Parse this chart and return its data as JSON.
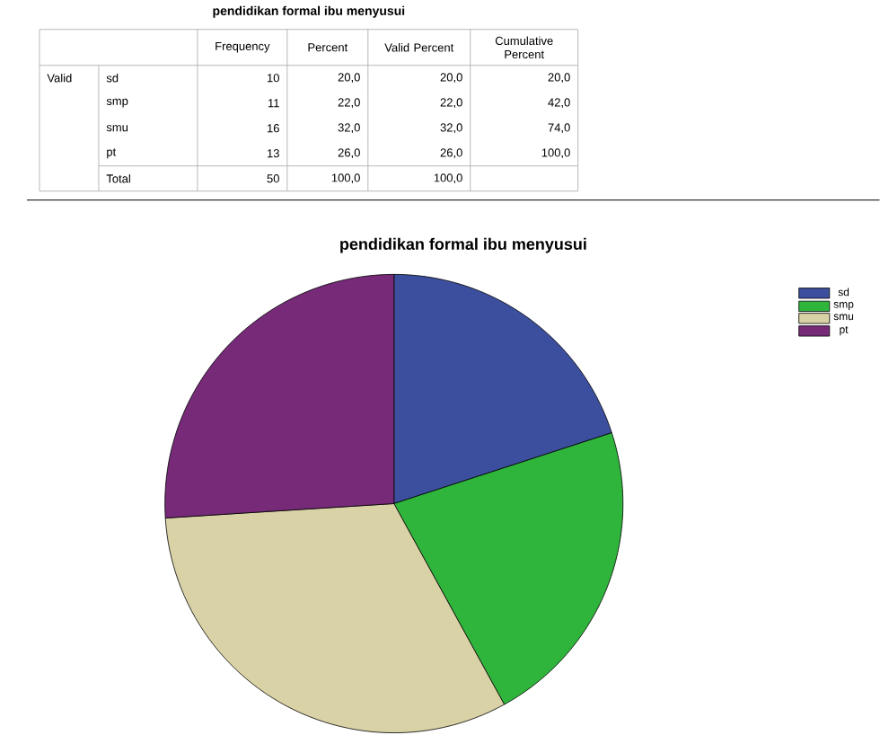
{
  "chart_data": {
    "type": "pie",
    "title": "pendidikan formal ibu menyusui",
    "categories": [
      "sd",
      "smp",
      "smu",
      "pt"
    ],
    "values": [
      20,
      22,
      32,
      26
    ],
    "colors": [
      "#3c4f9e",
      "#2fb53c",
      "#d9d2a6",
      "#762a78"
    ],
    "legend": "top right",
    "annotations": [
      "pendidikan formal ibu menyusui",
      "Frequency",
      "Percent",
      "Valid Percent",
      "Cumulative Percent",
      "Valid",
      "sd",
      "10",
      "20,0",
      "20,0",
      "20,0",
      "smp",
      "11",
      "22,0",
      "22,0",
      "42,0",
      "smu",
      "16",
      "32,0",
      "32,0",
      "74,0",
      "pt",
      "13",
      "26,0",
      "26,0",
      "100,0",
      "Total",
      "50",
      "100,0",
      "100,0"
    ]
  }
}
